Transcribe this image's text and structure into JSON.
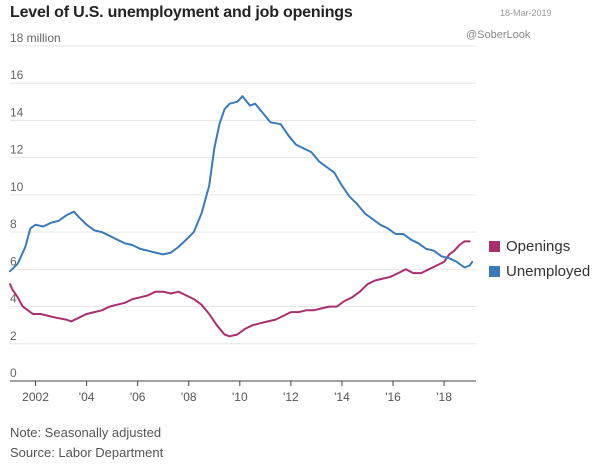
{
  "header": {
    "title": "Level of U.S. unemployment and job openings",
    "date": "18-Mar-2019",
    "handle": "@SoberLook"
  },
  "footer": {
    "note": "Note: Seasonally adjusted",
    "source": "Source: Labor Department"
  },
  "chart_data": {
    "type": "line",
    "title": "Level of U.S. unemployment and job openings",
    "xlabel": "",
    "ylabel": "",
    "xlim": [
      2001.0,
      2019.25
    ],
    "ylim": [
      0,
      18
    ],
    "yticks": [
      0,
      2,
      4,
      6,
      8,
      10,
      12,
      14,
      16,
      18
    ],
    "ytick_labels": [
      "0",
      "2",
      "4",
      "6",
      "8",
      "10",
      "12",
      "14",
      "16",
      "18 million"
    ],
    "xticks": [
      2002,
      2004,
      2006,
      2008,
      2010,
      2012,
      2014,
      2016,
      2018
    ],
    "xtick_labels": [
      "2002",
      "'04",
      "'06",
      "'08",
      "'10",
      "'12",
      "'14",
      "'16",
      "'18"
    ],
    "grid": "horizontal",
    "legend_position": "right",
    "series": [
      {
        "name": "Openings",
        "color": "#a8306e",
        "x": [
          2001.0,
          2001.1,
          2001.3,
          2001.5,
          2001.7,
          2001.9,
          2002.2,
          2002.5,
          2002.8,
          2003.2,
          2003.4,
          2003.7,
          2004.0,
          2004.3,
          2004.6,
          2004.9,
          2005.2,
          2005.5,
          2005.8,
          2006.1,
          2006.4,
          2006.7,
          2007.0,
          2007.3,
          2007.6,
          2007.9,
          2008.2,
          2008.5,
          2008.8,
          2009.1,
          2009.4,
          2009.6,
          2009.9,
          2010.2,
          2010.5,
          2010.8,
          2011.1,
          2011.4,
          2011.7,
          2012.0,
          2012.3,
          2012.6,
          2012.9,
          2013.2,
          2013.5,
          2013.8,
          2014.1,
          2014.4,
          2014.7,
          2015.0,
          2015.3,
          2015.6,
          2015.9,
          2016.2,
          2016.5,
          2016.8,
          2017.1,
          2017.4,
          2017.7,
          2018.0,
          2018.2,
          2018.4,
          2018.6,
          2018.8,
          2019.0
        ],
        "values": [
          5.2,
          4.9,
          4.5,
          4.0,
          3.8,
          3.6,
          3.6,
          3.5,
          3.4,
          3.3,
          3.2,
          3.4,
          3.6,
          3.7,
          3.8,
          4.0,
          4.1,
          4.2,
          4.4,
          4.5,
          4.6,
          4.8,
          4.8,
          4.7,
          4.8,
          4.6,
          4.4,
          4.1,
          3.6,
          3.0,
          2.5,
          2.4,
          2.5,
          2.8,
          3.0,
          3.1,
          3.2,
          3.3,
          3.5,
          3.7,
          3.7,
          3.8,
          3.8,
          3.9,
          4.0,
          4.0,
          4.3,
          4.5,
          4.8,
          5.2,
          5.4,
          5.5,
          5.6,
          5.8,
          6.0,
          5.8,
          5.8,
          6.0,
          6.2,
          6.4,
          6.8,
          7.0,
          7.3,
          7.5,
          7.5
        ]
      },
      {
        "name": "Unemployed",
        "color": "#3a7ab8",
        "x": [
          2001.0,
          2001.3,
          2001.6,
          2001.8,
          2002.0,
          2002.3,
          2002.6,
          2002.9,
          2003.2,
          2003.5,
          2003.7,
          2004.0,
          2004.3,
          2004.6,
          2004.9,
          2005.2,
          2005.5,
          2005.8,
          2006.1,
          2006.4,
          2006.7,
          2007.0,
          2007.3,
          2007.6,
          2007.9,
          2008.2,
          2008.5,
          2008.8,
          2009.0,
          2009.2,
          2009.4,
          2009.6,
          2009.9,
          2010.1,
          2010.4,
          2010.6,
          2010.9,
          2011.2,
          2011.6,
          2011.9,
          2012.2,
          2012.5,
          2012.8,
          2013.1,
          2013.4,
          2013.7,
          2014.0,
          2014.3,
          2014.6,
          2014.9,
          2015.2,
          2015.5,
          2015.8,
          2016.1,
          2016.4,
          2016.7,
          2017.0,
          2017.3,
          2017.6,
          2017.9,
          2018.2,
          2018.5,
          2018.8,
          2019.0,
          2019.1
        ],
        "values": [
          5.9,
          6.3,
          7.2,
          8.2,
          8.4,
          8.3,
          8.5,
          8.6,
          8.9,
          9.1,
          8.8,
          8.4,
          8.1,
          8.0,
          7.8,
          7.6,
          7.4,
          7.3,
          7.1,
          7.0,
          6.9,
          6.8,
          6.9,
          7.2,
          7.6,
          8.0,
          9.0,
          10.5,
          12.5,
          13.8,
          14.6,
          14.9,
          15.0,
          15.3,
          14.8,
          14.9,
          14.4,
          13.9,
          13.8,
          13.2,
          12.7,
          12.5,
          12.3,
          11.8,
          11.5,
          11.2,
          10.5,
          9.9,
          9.5,
          9.0,
          8.7,
          8.4,
          8.2,
          7.9,
          7.9,
          7.6,
          7.4,
          7.1,
          7.0,
          6.7,
          6.6,
          6.4,
          6.1,
          6.2,
          6.4
        ]
      }
    ]
  }
}
